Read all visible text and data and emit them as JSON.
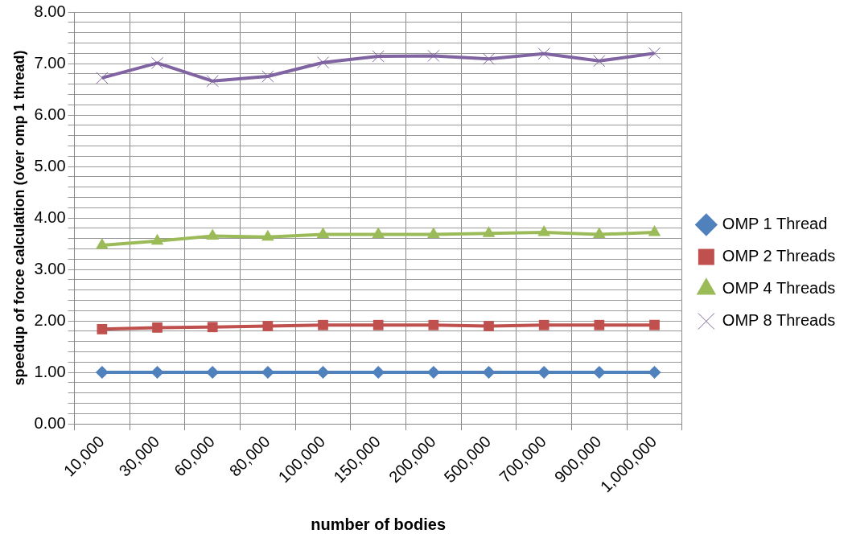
{
  "chart_data": {
    "type": "line",
    "xlabel": "number of bodies",
    "ylabel": "speedup of force calculation (over omp 1 thread)",
    "categories": [
      "10,000",
      "30,000",
      "60,000",
      "80,000",
      "100,000",
      "150,000",
      "200,000",
      "500,000",
      "700,000",
      "900,000",
      "1,000,000"
    ],
    "series": [
      {
        "name": "OMP 1 Thread",
        "color": "#4f81bd",
        "marker": "diamond",
        "values": [
          1,
          1,
          1,
          1,
          1,
          1,
          1,
          1,
          1,
          1,
          1
        ]
      },
      {
        "name": "OMP 2 Threads",
        "color": "#c0504d",
        "marker": "square",
        "values": [
          1.84,
          1.87,
          1.88,
          1.9,
          1.92,
          1.92,
          1.92,
          1.9,
          1.92,
          1.92,
          1.92
        ]
      },
      {
        "name": "OMP 4 Threads",
        "color": "#9bbb59",
        "marker": "triangle",
        "values": [
          3.47,
          3.55,
          3.65,
          3.63,
          3.68,
          3.68,
          3.68,
          3.7,
          3.72,
          3.68,
          3.72
        ]
      },
      {
        "name": "OMP 8 Threads",
        "color": "#8064a2",
        "marker": "cross",
        "values": [
          6.72,
          7.01,
          6.66,
          6.75,
          7.02,
          7.14,
          7.15,
          7.09,
          7.19,
          7.05,
          7.2
        ]
      }
    ],
    "ylim": [
      0,
      8
    ],
    "yticks": [
      {
        "value": 0,
        "label": "0.00"
      },
      {
        "value": 0.2,
        "label": null
      },
      {
        "value": 0.4,
        "label": null
      },
      {
        "value": 0.6,
        "label": null
      },
      {
        "value": 0.8,
        "label": null
      },
      {
        "value": 1,
        "label": "1.00"
      },
      {
        "value": 1.2,
        "label": null
      },
      {
        "value": 1.4,
        "label": null
      },
      {
        "value": 1.6,
        "label": null
      },
      {
        "value": 1.8,
        "label": null
      },
      {
        "value": 2,
        "label": "2.00"
      },
      {
        "value": 2.2,
        "label": null
      },
      {
        "value": 2.4,
        "label": null
      },
      {
        "value": 2.6,
        "label": null
      },
      {
        "value": 2.8,
        "label": null
      },
      {
        "value": 3,
        "label": "3.00"
      },
      {
        "value": 3.2,
        "label": null
      },
      {
        "value": 3.4,
        "label": null
      },
      {
        "value": 3.6,
        "label": null
      },
      {
        "value": 3.8,
        "label": null
      },
      {
        "value": 4,
        "label": "4.00"
      },
      {
        "value": 4.2,
        "label": null
      },
      {
        "value": 4.4,
        "label": null
      },
      {
        "value": 4.6,
        "label": null
      },
      {
        "value": 4.8,
        "label": null
      },
      {
        "value": 5,
        "label": "5.00"
      },
      {
        "value": 5.2,
        "label": null
      },
      {
        "value": 5.4,
        "label": null
      },
      {
        "value": 5.6,
        "label": null
      },
      {
        "value": 5.8,
        "label": null
      },
      {
        "value": 6,
        "label": "6.00"
      },
      {
        "value": 6.2,
        "label": null
      },
      {
        "value": 6.4,
        "label": null
      },
      {
        "value": 6.6,
        "label": null
      },
      {
        "value": 6.8,
        "label": null
      },
      {
        "value": 7,
        "label": "7.00"
      },
      {
        "value": 7.2,
        "label": null
      },
      {
        "value": 7.4,
        "label": null
      },
      {
        "value": 7.6,
        "label": null
      },
      {
        "value": 7.8,
        "label": null
      },
      {
        "value": 8,
        "label": "8.00"
      }
    ],
    "grid": true,
    "legend": "right",
    "line_style": "solid"
  }
}
